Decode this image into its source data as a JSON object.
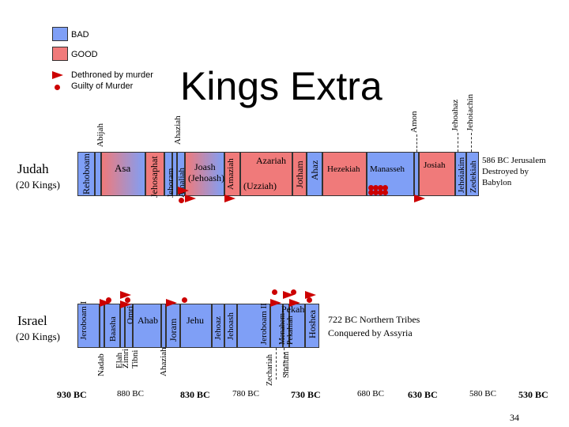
{
  "title": "Kings Extra",
  "legend": {
    "bad": "BAD",
    "good": "GOOD",
    "murder": "Dethroned by murder",
    "guilty": "Guilty of Murder"
  },
  "colors": {
    "bad": "#7f9ff6",
    "good": "#f07a7a",
    "bar_edge": "#333333",
    "murder_mark": "#cc0000"
  },
  "judah": {
    "label": "Judah",
    "count": "(20 Kings)",
    "kings": [
      "Rehoboam",
      "Abijah",
      "Asa",
      "Jehosaphat",
      "Jehoram",
      "Ahaziah",
      "Athaliah",
      "Ahaziah",
      "Joash",
      "(Jehoash)",
      "Amaziah",
      "Azariah",
      "(Uzziah)",
      "Jotham",
      "Ahaz",
      "Hezekiah",
      "Manasseh",
      "Amon",
      "Josiah",
      "Jehoahaz",
      "Jehoiakim",
      "Jehoiachin",
      "Zedekiah"
    ],
    "note": "586 BC Jerusalem Destroyed by Babylon"
  },
  "israel": {
    "label": "Israel",
    "count": "(20 Kings)",
    "kings": [
      "Jeroboam I",
      "Nadab",
      "Baasha",
      "Elah",
      "Zimri",
      "Tibni",
      "Omri",
      "Ahab",
      "Ahaziah",
      "Joram",
      "Jehu",
      "Jehoaz",
      "Jehoash",
      "Jeroboam II",
      "Zechariah",
      "Shallum",
      "Menahem",
      "Pekahiah",
      "Pekah",
      "Hoshea"
    ],
    "note": "722 BC Northern Tribes Conquered by Assyria"
  },
  "timeline": [
    "930 BC",
    "880 BC",
    "830 BC",
    "780 BC",
    "730 BC",
    "680 BC",
    "630 BC",
    "580 BC",
    "530 BC"
  ],
  "page_number": "34"
}
